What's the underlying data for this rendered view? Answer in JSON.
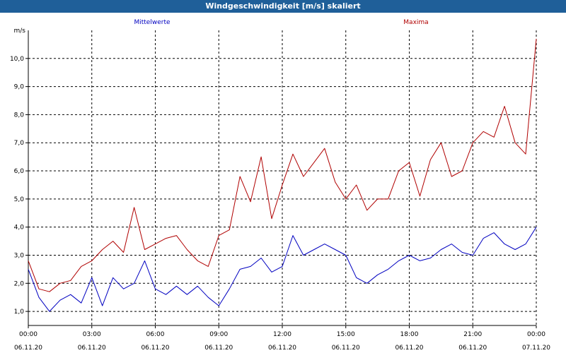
{
  "window": {
    "title": "Windgeschwindigkeit [m/s] skaliert"
  },
  "colors": {
    "titlebar": "#1f5f99",
    "mean": "#0000c0",
    "max": "#b00000",
    "grid": "#000000"
  },
  "chart_data": {
    "type": "line",
    "title": "Windgeschwindigkeit [m/s] skaliert",
    "ylabel": "m/s",
    "xlabel": "",
    "ylim": [
      0.5,
      11.0
    ],
    "yticks": [
      1.0,
      2.0,
      3.0,
      4.0,
      5.0,
      6.0,
      7.0,
      8.0,
      9.0,
      10.0
    ],
    "ytick_labels": [
      "1,0",
      "2,0",
      "3,0",
      "4,0",
      "5,0",
      "6,0",
      "7,0",
      "8,0",
      "9,0",
      "10,0"
    ],
    "xlim_hours": [
      0,
      24
    ],
    "xticks": [
      {
        "hour": 0,
        "time": "00:00",
        "date": "06.11.20"
      },
      {
        "hour": 3,
        "time": "03:00",
        "date": "06.11.20"
      },
      {
        "hour": 6,
        "time": "06:00",
        "date": "06.11.20"
      },
      {
        "hour": 9,
        "time": "09:00",
        "date": "06.11.20"
      },
      {
        "hour": 12,
        "time": "12:00",
        "date": "06.11.20"
      },
      {
        "hour": 15,
        "time": "15:00",
        "date": "06.11.20"
      },
      {
        "hour": 18,
        "time": "18:00",
        "date": "06.11.20"
      },
      {
        "hour": 21,
        "time": "21:00",
        "date": "06.11.20"
      },
      {
        "hour": 24,
        "time": "00:00",
        "date": "07.11.20"
      }
    ],
    "grid": true,
    "legend": [
      "Mittelwerte",
      "Maxima"
    ],
    "series": [
      {
        "name": "Mittelwerte",
        "color": "#0000c0",
        "x_hours": [
          0,
          0.5,
          1,
          1.5,
          2,
          2.5,
          3,
          3.5,
          4,
          4.5,
          5,
          5.5,
          6,
          6.5,
          7,
          7.5,
          8,
          8.5,
          9,
          9.5,
          10,
          10.5,
          11,
          11.5,
          12,
          12.5,
          13,
          13.5,
          14,
          14.5,
          15,
          15.5,
          16,
          16.5,
          17,
          17.5,
          18,
          18.5,
          19,
          19.5,
          20,
          20.5,
          21,
          21.5,
          22,
          22.5,
          23,
          23.5,
          24
        ],
        "values": [
          2.5,
          1.5,
          1.0,
          1.4,
          1.6,
          1.3,
          2.2,
          1.2,
          2.2,
          1.8,
          2.0,
          2.8,
          1.8,
          1.6,
          1.9,
          1.6,
          1.9,
          1.5,
          1.2,
          1.8,
          2.5,
          2.6,
          2.9,
          2.4,
          2.6,
          3.7,
          3.0,
          3.2,
          3.4,
          3.2,
          3.0,
          2.2,
          2.0,
          2.3,
          2.5,
          2.8,
          3.0,
          2.8,
          2.9,
          3.2,
          3.4,
          3.1,
          3.0,
          3.6,
          3.8,
          3.4,
          3.2,
          3.4,
          4.0
        ]
      },
      {
        "name": "Maxima",
        "color": "#b00000",
        "x_hours": [
          0,
          0.5,
          1,
          1.5,
          2,
          2.5,
          3,
          3.5,
          4,
          4.5,
          5,
          5.5,
          6,
          6.5,
          7,
          7.5,
          8,
          8.5,
          9,
          9.5,
          10,
          10.5,
          11,
          11.5,
          12,
          12.5,
          13,
          13.5,
          14,
          14.5,
          15,
          15.5,
          16,
          16.5,
          17,
          17.5,
          18,
          18.5,
          19,
          19.5,
          20,
          20.5,
          21,
          21.5,
          22,
          22.5,
          23,
          23.5,
          24
        ],
        "values": [
          2.8,
          1.8,
          1.7,
          2.0,
          2.1,
          2.6,
          2.8,
          3.2,
          3.5,
          3.1,
          4.7,
          3.2,
          3.4,
          3.6,
          3.7,
          3.2,
          2.8,
          2.6,
          3.7,
          3.9,
          5.8,
          4.9,
          6.5,
          4.3,
          5.5,
          6.6,
          5.8,
          6.3,
          6.8,
          5.6,
          5.0,
          5.5,
          4.6,
          5.0,
          5.0,
          6.0,
          6.3,
          5.1,
          6.4,
          7.0,
          5.8,
          6.0,
          7.0,
          7.4,
          7.2,
          8.3,
          7.0,
          6.6,
          10.7
        ]
      }
    ]
  }
}
